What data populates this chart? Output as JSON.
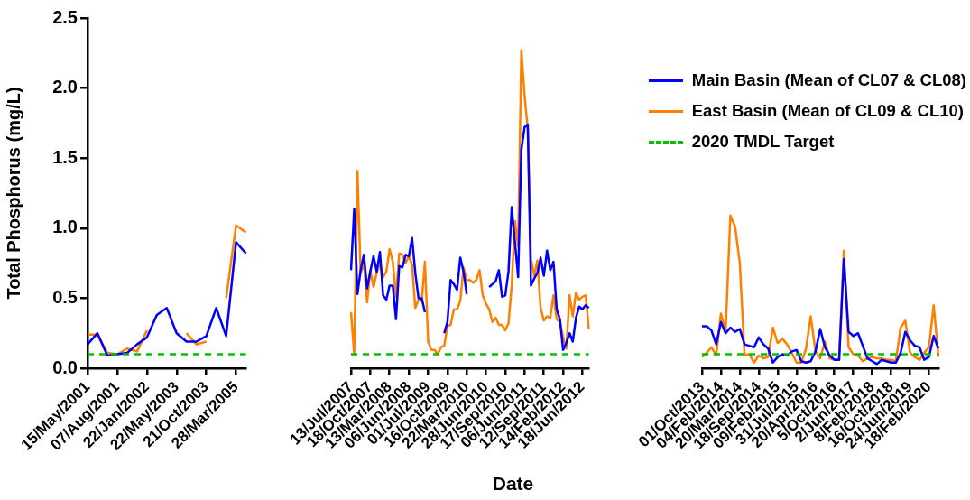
{
  "chart_data": [
    {
      "type": "line",
      "ylabel": "Total Phosphorus (mg/L)",
      "ylim": [
        0,
        2.5
      ],
      "yticks": [
        {
          "value": 0,
          "label": "0.0"
        },
        0.5,
        {
          "value": 1,
          "label": "1.0"
        },
        1.5,
        {
          "value": 2,
          "label": "2.0"
        },
        2.5
      ],
      "grid": false,
      "line_style": "solid",
      "marker": "none",
      "categories": [
        "15/May/2001",
        null,
        null,
        "07/Aug/2001",
        null,
        null,
        "22/Jan/2002",
        null,
        null,
        "22/May/2003",
        null,
        null,
        "21/Oct/2003",
        null,
        null,
        "28/Mar/2005",
        null
      ],
      "series": [
        {
          "color": "#0000ff",
          "values": [
            0.17,
            0.25,
            0.09,
            0.1,
            0.11,
            0.17,
            0.22,
            0.38,
            0.43,
            0.25,
            0.19,
            0.19,
            0.23,
            0.43,
            0.23,
            0.9,
            0.82
          ]
        },
        {
          "color": "#ff7f00",
          "values": [
            0.24,
            0.24,
            0.11,
            0.1,
            0.14,
            0.12,
            0.27,
            null,
            null,
            null,
            0.25,
            0.17,
            0.19,
            null,
            0.5,
            1.02,
            0.97
          ]
        }
      ],
      "ref_lines": [
        {
          "axis": "y",
          "value": 0.1,
          "color": "#00c000",
          "line_style": "dashed"
        }
      ]
    },
    {
      "type": "line",
      "xlabel": "Date",
      "ylim": [
        0,
        2.5
      ],
      "tick_labels": "x",
      "grid": false,
      "line_style": "solid",
      "marker": "none",
      "categories": [
        "13/Jul/2007",
        null,
        null,
        null,
        null,
        null,
        "18/Oct/2007",
        null,
        null,
        null,
        null,
        null,
        "13/Mar/2008",
        null,
        null,
        null,
        null,
        null,
        "06/Jun/2008",
        null,
        null,
        null,
        null,
        null,
        "01/Jul/2009",
        null,
        null,
        null,
        null,
        null,
        "16/Oct/2009",
        null,
        null,
        null,
        null,
        null,
        "22/Mar/2010",
        null,
        null,
        null,
        null,
        null,
        "28/Jun/2010",
        null,
        null,
        null,
        null,
        null,
        "17/Sep/2010",
        null,
        null,
        null,
        null,
        null,
        "06/Jun/2011",
        null,
        null,
        null,
        null,
        null,
        "12/Sep/2011",
        null,
        null,
        null,
        null,
        null,
        "14/Feb/2012",
        null,
        null,
        null,
        null,
        null,
        "18/Jun/2012",
        null,
        null
      ],
      "series": [
        {
          "color": "#0000ff",
          "values": [
            0.7,
            1.14,
            0.53,
            0.7,
            0.81,
            0.57,
            0.69,
            0.8,
            0.69,
            0.83,
            0.52,
            0.49,
            0.59,
            0.59,
            0.35,
            0.73,
            0.72,
            0.81,
            0.8,
            0.93,
            0.68,
            0.5,
            0.5,
            0.4,
            null,
            null,
            null,
            null,
            null,
            0.25,
            0.33,
            0.63,
            0.6,
            0.56,
            0.79,
            0.69,
            0.53,
            null,
            null,
            null,
            null,
            null,
            null,
            0.58,
            0.6,
            0.62,
            0.7,
            0.51,
            0.52,
            0.69,
            1.15,
            0.9,
            0.65,
            1.56,
            1.72,
            1.74,
            0.59,
            0.64,
            0.68,
            0.79,
            0.66,
            0.84,
            0.7,
            0.76,
            0.42,
            0.35,
            0.13,
            0.18,
            0.25,
            0.19,
            0.36,
            0.44,
            0.42,
            0.45,
            0.43
          ]
        },
        {
          "color": "#ff7f00",
          "values": [
            0.4,
            0.1,
            1.41,
            0.68,
            0.75,
            0.47,
            0.7,
            0.58,
            0.68,
            0.75,
            0.65,
            0.69,
            0.85,
            0.76,
            0.51,
            0.82,
            0.81,
            0.75,
            0.8,
            0.74,
            0.43,
            0.49,
            0.48,
            0.76,
            0.19,
            0.13,
            0.13,
            0.1,
            0.15,
            0.16,
            0.3,
            0.31,
            0.42,
            0.42,
            0.48,
            0.72,
            0.63,
            0.63,
            0.61,
            0.63,
            0.7,
            0.52,
            0.46,
            0.42,
            0.33,
            0.36,
            0.31,
            0.31,
            0.27,
            0.32,
            0.59,
            1.05,
            0.87,
            2.27,
            1.95,
            1.71,
            0.78,
            0.66,
            0.77,
            0.43,
            0.34,
            0.37,
            0.36,
            0.52,
            0.35,
            0.33,
            0.22,
            0.14,
            0.52,
            0.37,
            0.54,
            0.49,
            0.51,
            0.52,
            0.28
          ]
        }
      ],
      "ref_lines": [
        {
          "axis": "y",
          "value": 0.1,
          "color": "#00c000",
          "line_style": "dashed"
        }
      ]
    },
    {
      "type": "line",
      "ylim": [
        0,
        2.5
      ],
      "tick_labels": "x",
      "grid": false,
      "line_style": "solid",
      "marker": "none",
      "legend": "top",
      "categories": [
        "01/Oct/2013",
        null,
        null,
        null,
        "04/Feb/2014",
        null,
        null,
        null,
        "20/Mar/2014",
        null,
        null,
        null,
        "18/Sep/2014",
        null,
        null,
        null,
        "09/Feb/2015",
        null,
        null,
        null,
        "31/Jul/2015",
        null,
        null,
        null,
        "20/Apr/2016",
        null,
        null,
        null,
        "5/Oct/2016",
        null,
        null,
        null,
        "2/Jun/2017",
        null,
        null,
        null,
        "8/Feb/2018",
        null,
        null,
        null,
        "16/Oct/2018",
        null,
        null,
        null,
        "24/Jun/2019",
        null,
        null,
        null,
        "18/Feb/2020",
        null,
        null
      ],
      "series": [
        {
          "name": "Main Basin (Mean of CL07 & CL08)",
          "color": "#0000ff",
          "values": [
            0.3,
            0.3,
            0.27,
            0.17,
            0.33,
            0.25,
            0.29,
            0.26,
            0.28,
            0.17,
            0.16,
            0.15,
            0.22,
            0.17,
            0.14,
            0.04,
            0.08,
            0.1,
            0.09,
            0.12,
            0.13,
            0.05,
            0.04,
            0.05,
            0.12,
            0.28,
            0.15,
            0.09,
            0.06,
            0.06,
            0.78,
            0.26,
            0.23,
            0.25,
            0.16,
            0.07,
            0.05,
            0.03,
            0.06,
            0.05,
            0.04,
            0.04,
            0.11,
            0.26,
            0.2,
            0.16,
            0.15,
            0.06,
            0.08,
            0.23,
            0.14
          ]
        },
        {
          "name": "East Basin (Mean of CL09 & CL10)",
          "color": "#ff7f00",
          "values": [
            0.08,
            0.11,
            0.15,
            0.09,
            0.39,
            0.27,
            1.09,
            1.01,
            0.75,
            0.09,
            0.1,
            0.04,
            0.09,
            0.07,
            0.08,
            0.29,
            0.18,
            0.21,
            0.17,
            0.11,
            0.04,
            0.04,
            0.14,
            0.37,
            0.12,
            0.07,
            0.19,
            0.07,
            0.06,
            0.06,
            0.84,
            0.15,
            0.1,
            0.09,
            0.05,
            0.07,
            0.08,
            0.07,
            0.07,
            0.06,
            0.06,
            0.05,
            0.29,
            0.34,
            0.11,
            0.08,
            0.06,
            0.11,
            0.15,
            0.45,
            0.08
          ]
        }
      ],
      "ref_lines": [
        {
          "axis": "y",
          "value": 0.1,
          "label": "2020 TMDL Target",
          "color": "#00c000",
          "line_style": "dashed"
        }
      ]
    }
  ]
}
